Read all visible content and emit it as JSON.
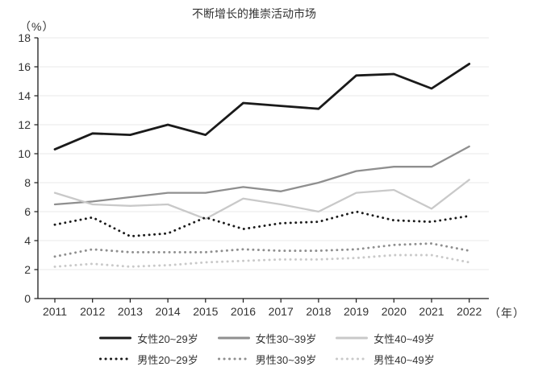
{
  "title": "不断增长的推崇活动市场",
  "axes": {
    "y_unit": "（%）",
    "x_unit": "（年）"
  },
  "colors": {
    "series_black": "#1a1a1a",
    "series_gray": "#8f8f8f",
    "series_light_gray": "#c9c9c9",
    "gridline": "#e9e9e9",
    "axis": "#1a1a1a",
    "text": "#333333"
  },
  "chart_data": {
    "type": "line",
    "title": "不断增长的推崇活动市场",
    "ylabel": "（%）",
    "xlabel": "（年）",
    "x": [
      2011,
      2012,
      2013,
      2014,
      2015,
      2016,
      2017,
      2018,
      2019,
      2020,
      2021,
      2022
    ],
    "ylim": [
      0,
      18
    ],
    "y_tick_step": 2,
    "grid": true,
    "legend_position": "bottom",
    "series": [
      {
        "name": "女性20~29岁",
        "line_style": "solid",
        "color": "#1a1a1a",
        "values": [
          10.3,
          11.4,
          11.3,
          12.0,
          11.3,
          13.5,
          13.3,
          13.1,
          15.4,
          15.5,
          14.5,
          16.2
        ]
      },
      {
        "name": "女性30~39岁",
        "line_style": "solid",
        "color": "#8f8f8f",
        "values": [
          6.5,
          6.7,
          7.0,
          7.3,
          7.3,
          7.7,
          7.4,
          8.0,
          8.8,
          9.1,
          9.1,
          10.5
        ]
      },
      {
        "name": "女性40~49岁",
        "line_style": "solid",
        "color": "#c9c9c9",
        "values": [
          7.3,
          6.5,
          6.4,
          6.5,
          5.5,
          6.9,
          6.5,
          6.0,
          7.3,
          7.5,
          6.2,
          8.2
        ]
      },
      {
        "name": "男性20~29岁",
        "line_style": "dotted",
        "color": "#1a1a1a",
        "values": [
          5.1,
          5.6,
          4.3,
          4.5,
          5.6,
          4.8,
          5.2,
          5.3,
          6.0,
          5.4,
          5.3,
          5.7
        ]
      },
      {
        "name": "男性30~39岁",
        "line_style": "dotted",
        "color": "#8f8f8f",
        "values": [
          2.9,
          3.4,
          3.2,
          3.2,
          3.2,
          3.4,
          3.3,
          3.3,
          3.4,
          3.7,
          3.8,
          3.3
        ]
      },
      {
        "name": "男性40~49岁",
        "line_style": "dotted",
        "color": "#c9c9c9",
        "values": [
          2.2,
          2.4,
          2.2,
          2.3,
          2.5,
          2.6,
          2.7,
          2.7,
          2.8,
          3.0,
          3.0,
          2.5
        ]
      }
    ]
  }
}
